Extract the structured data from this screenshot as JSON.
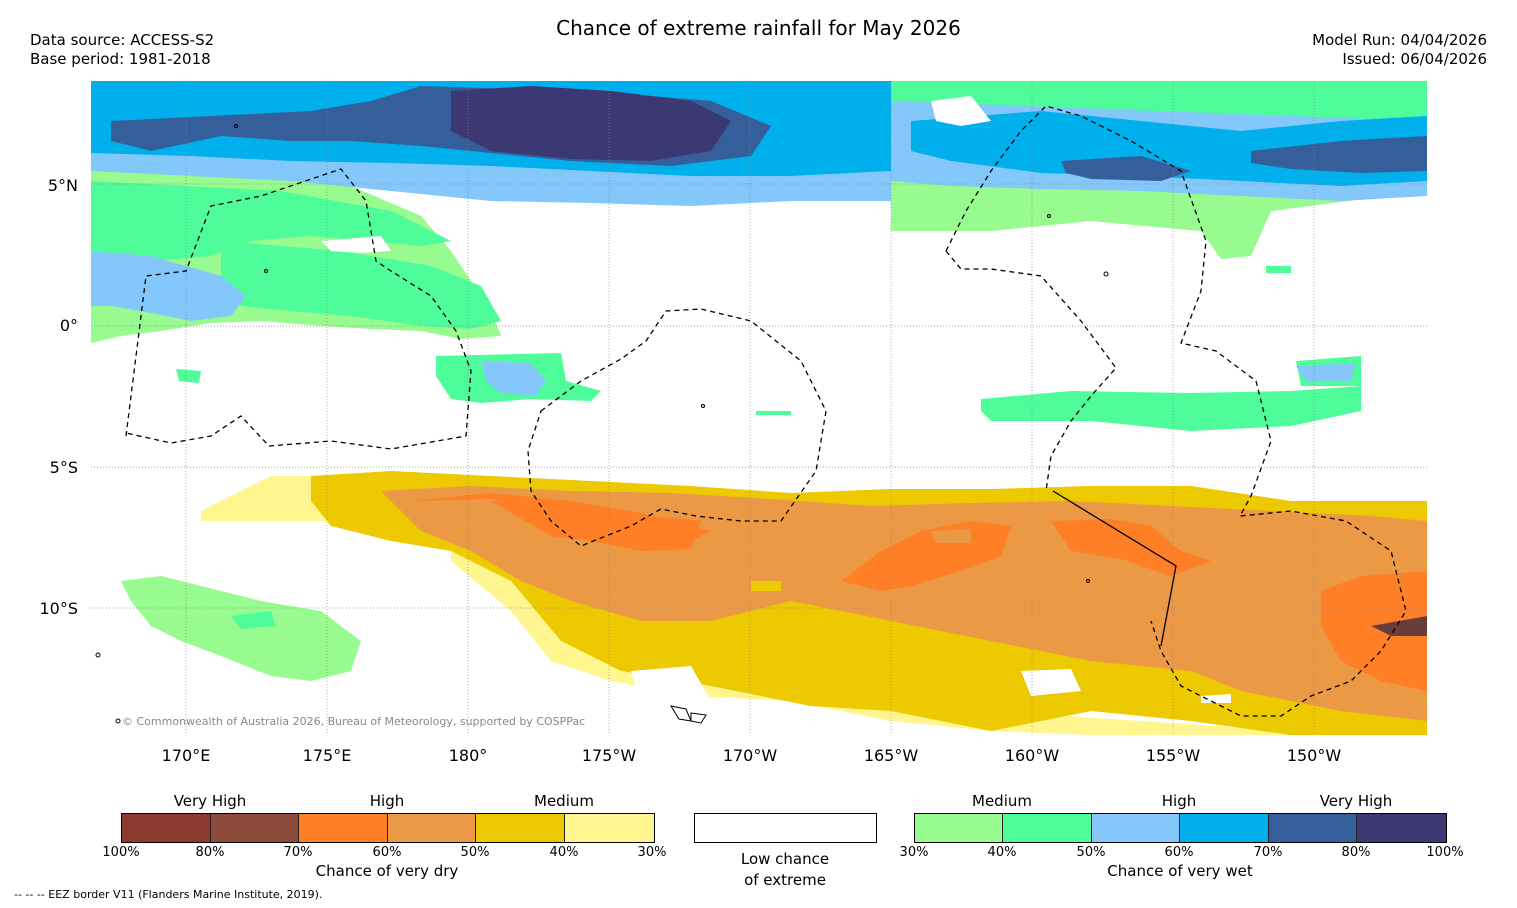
{
  "title": "Chance of extreme rainfall for May 2026",
  "data_source": "Data source: ACCESS-S2",
  "base_period": "Base period: 1981-2018",
  "model_run": "Model Run: 04/04/2026",
  "issued": "Issued: 06/04/2026",
  "lat_labels": [
    "5°N",
    "0°",
    "5°S",
    "10°S"
  ],
  "lon_labels": [
    "170°E",
    "175°E",
    "180°",
    "175°W",
    "170°W",
    "165°W",
    "160°W",
    "155°W",
    "150°W"
  ],
  "copyright": "© Commonwealth of Australia 2026, Bureau of Meteorology, supported by COSPPac",
  "legend": {
    "dry": {
      "title": "Chance of very dry",
      "categories": [
        "Very High",
        "High",
        "Medium"
      ],
      "ticks": [
        "100%",
        "80%",
        "70%",
        "60%",
        "50%",
        "40%",
        "30%"
      ],
      "colors": [
        "#8b3a30",
        "#8b4a3a",
        "#ff7f27",
        "#eb9944",
        "#ecc900",
        "#fff68f"
      ]
    },
    "neutral": {
      "title_line1": "Low chance",
      "title_line2": "of extreme",
      "color": "#ffffff"
    },
    "wet": {
      "title": "Chance of very wet",
      "categories": [
        "Medium",
        "High",
        "Very High"
      ],
      "ticks": [
        "30%",
        "40%",
        "50%",
        "60%",
        "70%",
        "80%",
        "100%"
      ],
      "colors": [
        "#98fb8f",
        "#4efd9a",
        "#84c8fb",
        "#00b0ec",
        "#345f9b",
        "#3c3874"
      ]
    }
  },
  "eez_note": "--  --  -- EEZ border V11 (Flanders Marine Institute, 2019)."
}
